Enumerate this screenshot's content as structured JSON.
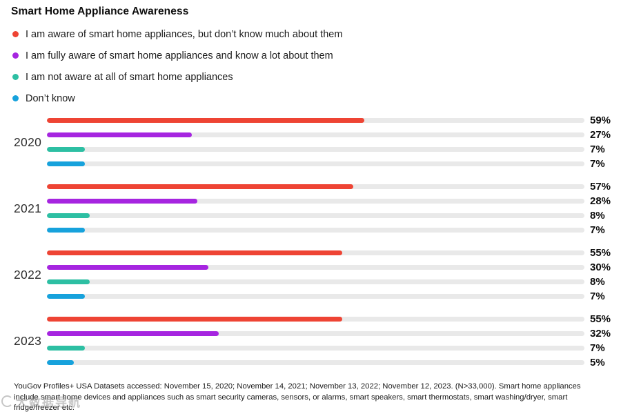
{
  "title": "Smart Home Appliance Awareness",
  "legend": [
    {
      "label": "I am aware of smart home appliances, but don’t know much about them",
      "color": "#ee4434"
    },
    {
      "label": "I am fully aware of smart home appliances and know a lot about them",
      "color": "#a625e0"
    },
    {
      "label": "I am not aware at all of smart home appliances",
      "color": "#2dbfa3"
    },
    {
      "label": "Don’t know",
      "color": "#17a2dc"
    }
  ],
  "chart_data": {
    "type": "bar",
    "orientation": "horizontal",
    "title": "Smart Home Appliance Awareness",
    "categories": [
      "2020",
      "2021",
      "2022",
      "2023"
    ],
    "series": [
      {
        "name": "I am aware of smart home appliances, but don’t know much about them",
        "color": "#ee4434",
        "values": [
          59,
          57,
          55,
          55
        ]
      },
      {
        "name": "I am fully aware of smart home appliances and know a lot about them",
        "color": "#a625e0",
        "values": [
          27,
          28,
          30,
          32
        ]
      },
      {
        "name": "I am not aware at all of smart home appliances",
        "color": "#2dbfa3",
        "values": [
          7,
          8,
          8,
          7
        ]
      },
      {
        "name": "Don’t know",
        "color": "#17a2dc",
        "values": [
          7,
          7,
          7,
          5
        ]
      }
    ],
    "value_suffix": "%",
    "xlim": [
      0,
      100
    ],
    "grid": false,
    "legend_position": "top-left",
    "track_color": "#e9e9e9"
  },
  "footer": "YouGov Profiles+ USA Datasets accessed: November 15, 2020; November 14, 2021; November 13, 2022; November 12, 2023. (N>33,000). Smart home appliances include smart home devices and appliances such as smart security cameras, sensors, or alarms, smart speakers, smart thermostats, smart washing/dryer, smart fridge/freezer etc.",
  "watermark": {
    "text": "大数据导航"
  }
}
